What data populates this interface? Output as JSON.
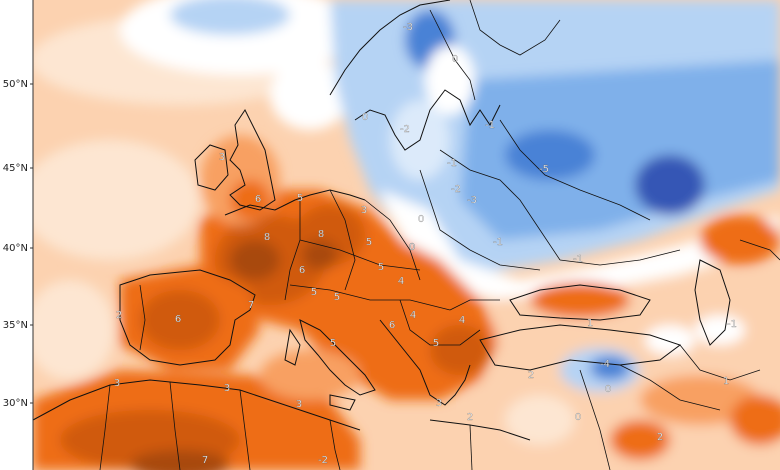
{
  "map": {
    "latitude_labels": [
      "50°N",
      "45°N",
      "40°N",
      "35°N",
      "30°N"
    ],
    "anomaly_labels": [
      {
        "text": "-3"
      },
      {
        "text": "0"
      },
      {
        "text": "0"
      },
      {
        "text": "-1"
      },
      {
        "text": "-2"
      },
      {
        "text": "-1"
      },
      {
        "text": "-5"
      },
      {
        "text": "-2"
      },
      {
        "text": "-3"
      },
      {
        "text": "-1"
      },
      {
        "text": "-4"
      },
      {
        "text": "0"
      },
      {
        "text": "0"
      },
      {
        "text": "-1"
      },
      {
        "text": "3"
      },
      {
        "text": "6"
      },
      {
        "text": "5"
      },
      {
        "text": "3"
      },
      {
        "text": "8"
      },
      {
        "text": "8"
      },
      {
        "text": "5"
      },
      {
        "text": "0"
      },
      {
        "text": "6"
      },
      {
        "text": "5"
      },
      {
        "text": "5"
      },
      {
        "text": "7"
      },
      {
        "text": "4"
      },
      {
        "text": "5"
      },
      {
        "text": "2"
      },
      {
        "text": "6"
      },
      {
        "text": "6"
      },
      {
        "text": "4"
      },
      {
        "text": "4"
      },
      {
        "text": "5"
      },
      {
        "text": "5"
      },
      {
        "text": "3"
      },
      {
        "text": "3"
      },
      {
        "text": "3"
      },
      {
        "text": "3"
      },
      {
        "text": "7"
      },
      {
        "text": "2"
      },
      {
        "text": "0"
      },
      {
        "text": "0"
      },
      {
        "text": "1"
      },
      {
        "text": "1"
      },
      {
        "text": "-1"
      },
      {
        "text": "2"
      },
      {
        "text": "2"
      },
      {
        "text": "-2"
      }
    ],
    "colors": {
      "ocean_warm_light": "#fcd2b0",
      "warm_pale": "#fde6d2",
      "warm_mid": "#f8a062",
      "warm_strong": "#ee6d13",
      "warm_deep": "#d05a0c",
      "warm_darkest": "#a8490e",
      "neutral": "#ffffff",
      "cool_pale": "#dceafa",
      "cool_light": "#b5d3f4",
      "cool_mid": "#7fb0ea",
      "cool_strong": "#4a82d6",
      "cool_deep": "#3557b5"
    }
  }
}
